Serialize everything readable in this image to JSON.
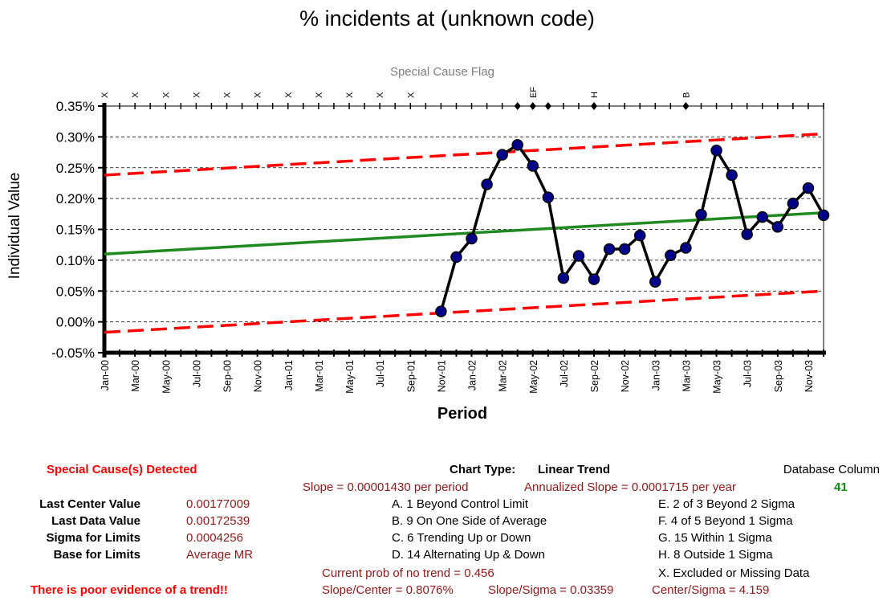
{
  "chart_data": {
    "type": "line",
    "title": "% incidents at (unknown code)",
    "flag_title": "Special Cause Flag",
    "xlabel": "Period",
    "ylabel": "Individual Value",
    "ylim": [
      -0.0005,
      0.0035
    ],
    "yticks": [
      "0.35%",
      "0.30%",
      "0.25%",
      "0.20%",
      "0.15%",
      "0.10%",
      "0.05%",
      "0.00%",
      "-0.05%"
    ],
    "ytick_values": [
      0.0035,
      0.003,
      0.0025,
      0.002,
      0.0015,
      0.001,
      0.0005,
      0.0,
      -0.0005
    ],
    "x_periods": 48,
    "x_tick_labels": [
      "Jan-00",
      "Mar-00",
      "May-00",
      "Jul-00",
      "Sep-00",
      "Nov-00",
      "Jan-01",
      "Mar-01",
      "May-01",
      "Jul-01",
      "Sep-01",
      "Nov-01",
      "Jan-02",
      "Mar-02",
      "May-02",
      "Jul-02",
      "Sep-02",
      "Nov-02",
      "Jan-03",
      "Mar-03",
      "May-03",
      "Jul-03",
      "Sep-03",
      "Nov-03"
    ],
    "series": [
      {
        "name": "Individual Value",
        "x": [
          22,
          23,
          24,
          25,
          26,
          27,
          28,
          29,
          30,
          31,
          32,
          33,
          34,
          35,
          36,
          37,
          38,
          39,
          40,
          41,
          42,
          43,
          44,
          45,
          46,
          47
        ],
        "values": [
          0.00017,
          0.00105,
          0.00135,
          0.00223,
          0.00271,
          0.00287,
          0.00253,
          0.00202,
          0.00071,
          0.00107,
          0.00069,
          0.00118,
          0.00118,
          0.0014,
          0.00065,
          0.00108,
          0.0012,
          0.00174,
          0.00278,
          0.00238,
          0.00142,
          0.0017,
          0.00154,
          0.00192,
          0.00217,
          0.00173
        ]
      },
      {
        "name": "Center",
        "x": [
          0,
          47
        ],
        "values": [
          0.0011,
          0.00177
        ]
      },
      {
        "name": "Upper Limit",
        "x": [
          0,
          47
        ],
        "values": [
          0.00238,
          0.00305
        ]
      },
      {
        "name": "Lower Limit",
        "x": [
          0,
          47
        ],
        "values": [
          -0.00017,
          0.0005
        ]
      }
    ],
    "flags": [
      {
        "x": 0,
        "label": "X"
      },
      {
        "x": 2,
        "label": "X"
      },
      {
        "x": 4,
        "label": "X"
      },
      {
        "x": 6,
        "label": "X"
      },
      {
        "x": 8,
        "label": "X"
      },
      {
        "x": 10,
        "label": "X"
      },
      {
        "x": 12,
        "label": "X"
      },
      {
        "x": 14,
        "label": "X"
      },
      {
        "x": 16,
        "label": "X"
      },
      {
        "x": 18,
        "label": "X"
      },
      {
        "x": 20,
        "label": "X"
      },
      {
        "x": 27,
        "label": ""
      },
      {
        "x": 28,
        "label": "EF"
      },
      {
        "x": 29,
        "label": ""
      },
      {
        "x": 32,
        "label": "H"
      },
      {
        "x": 38,
        "label": "B"
      }
    ],
    "colors": {
      "data": "#000000",
      "marker": "#00008b",
      "center": "#1f8a1f",
      "limits": "#ff0000"
    }
  },
  "summary": {
    "special_cause": "Special Cause(s) Detected",
    "trend_warning": "There is poor evidence of a trend!!",
    "chart_type_label": "Chart Type:",
    "chart_type_value": "Linear Trend",
    "db_column_label": "Database Column",
    "db_column_value": "41",
    "slope": "Slope = 0.00001430 per period",
    "annualized_slope": "Annualized Slope = 0.0001715 per year",
    "stats": [
      {
        "label": "Last Center Value",
        "value": "0.00177009"
      },
      {
        "label": "Last Data Value",
        "value": "0.00172539"
      },
      {
        "label": "Sigma for Limits",
        "value": "0.0004256"
      },
      {
        "label": "Base for Limits",
        "value": "Average MR"
      }
    ],
    "rules_left": [
      "A. 1 Beyond Control Limit",
      "B. 9 On One Side of Average",
      "C. 6 Trending Up or Down",
      "D. 14 Alternating  Up & Down"
    ],
    "rules_right": [
      "E. 2 of 3 Beyond 2 Sigma",
      "F. 4 of 5 Beyond 1 Sigma",
      "G. 15 Within 1 Sigma",
      "H. 8 Outside 1 Sigma",
      "X. Excluded or Missing Data"
    ],
    "prob_no_trend": "Current prob of no trend = 0.456",
    "slope_center": "Slope/Center = 0.8076%",
    "slope_sigma": "Slope/Sigma = 0.03359",
    "center_sigma": "Center/Sigma = 4.159"
  }
}
